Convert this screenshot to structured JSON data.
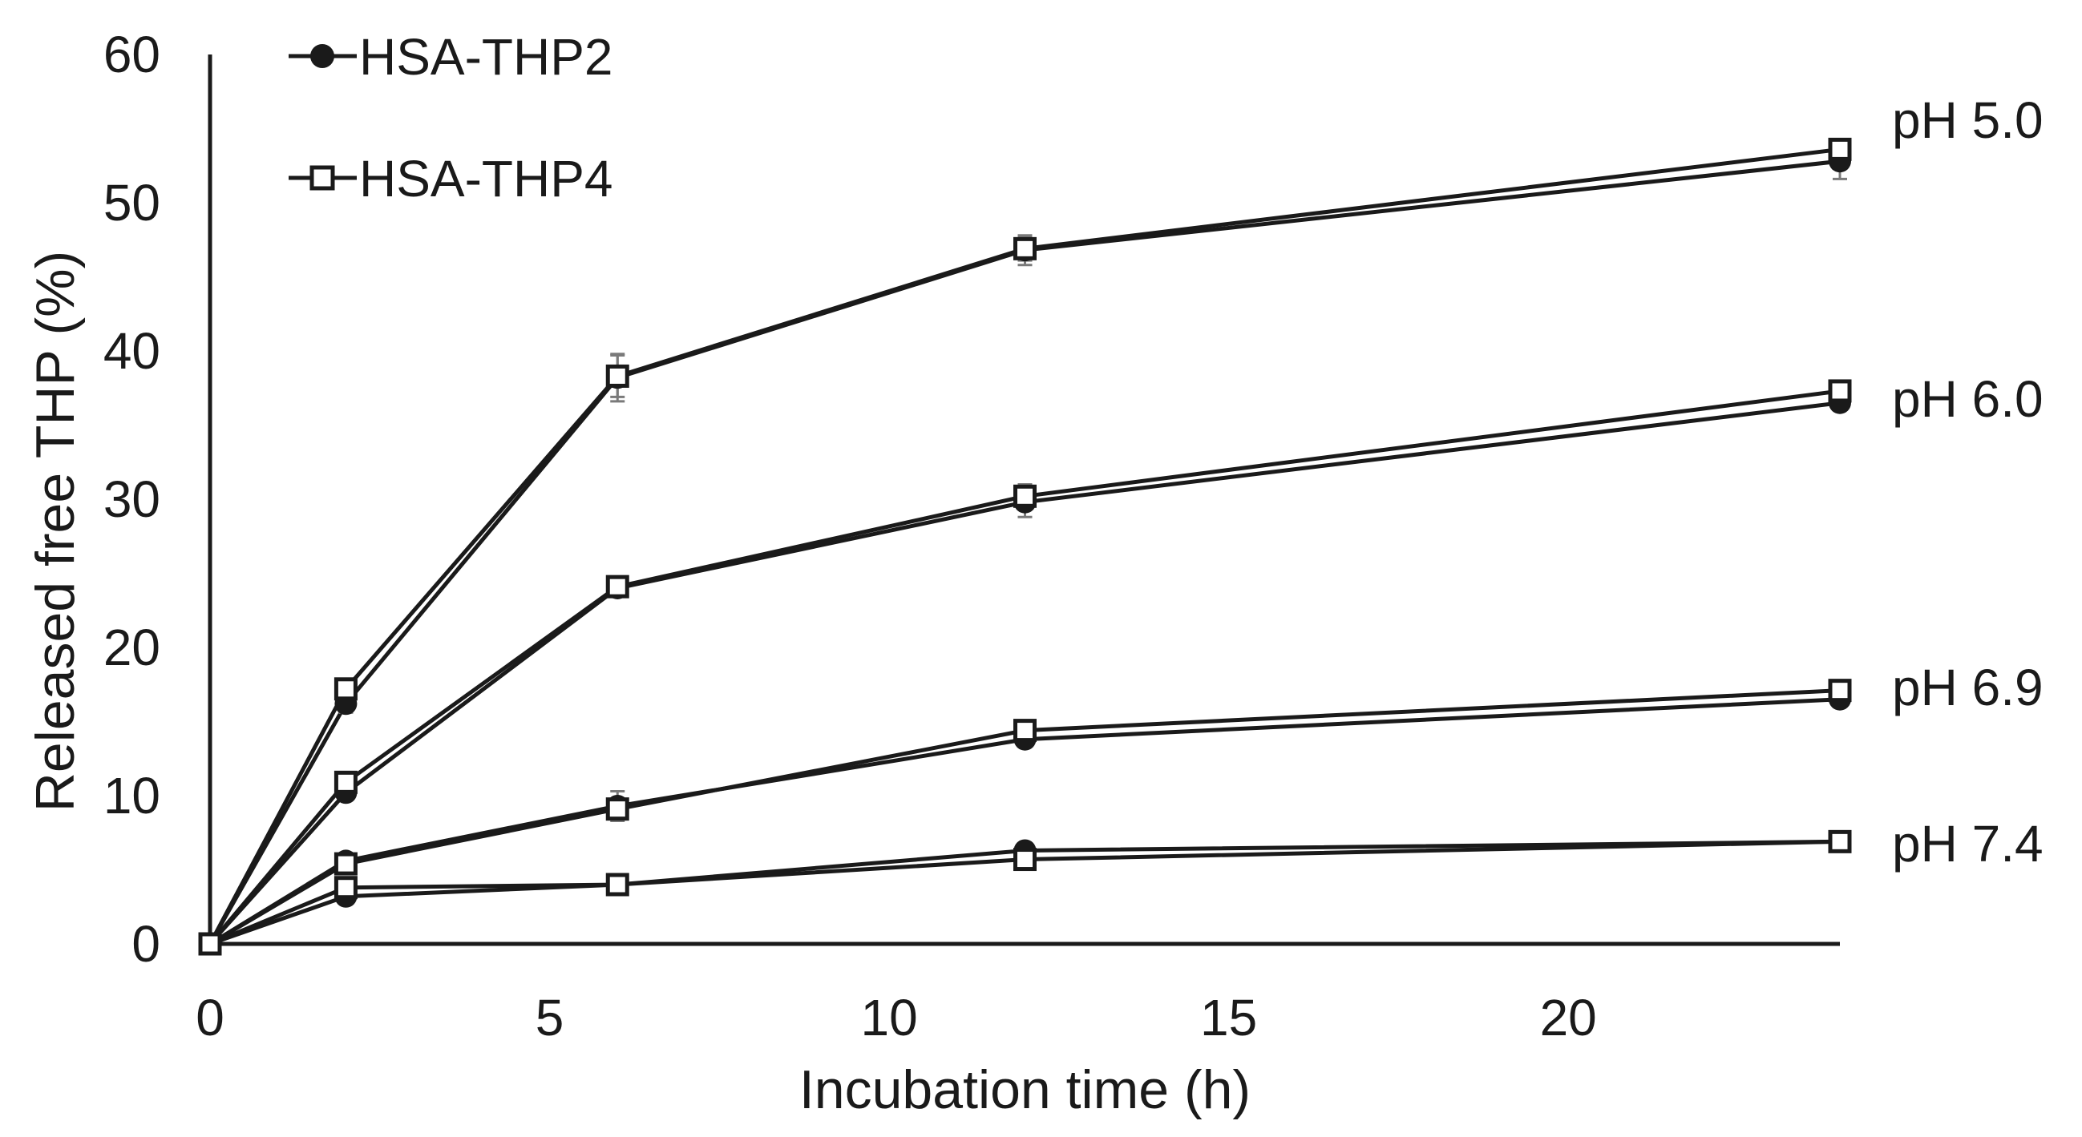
{
  "chart_data": {
    "type": "line",
    "title": "",
    "xlabel": "Incubation time (h)",
    "ylabel": "Released free THP (%)",
    "xlim": [
      0,
      24
    ],
    "ylim": [
      0,
      60
    ],
    "xticks": [
      0,
      5,
      10,
      15,
      20
    ],
    "yticks": [
      0,
      10,
      20,
      30,
      40,
      50,
      60
    ],
    "x": [
      0,
      2,
      6,
      12,
      24
    ],
    "legend": {
      "position": "top-left",
      "entries": [
        {
          "name": "HSA-THP2",
          "marker": "filled-circle"
        },
        {
          "name": "HSA-THP4",
          "marker": "open-square"
        }
      ]
    },
    "groups": [
      {
        "label": "pH 5.0",
        "series": [
          {
            "name": "HSA-THP2",
            "marker": "filled-circle",
            "values": [
              0,
              16.2,
              38.2,
              46.8,
              52.8
            ],
            "errors": [
              0,
              0.6,
              1.6,
              1.0,
              1.2
            ]
          },
          {
            "name": "HSA-THP4",
            "marker": "open-square",
            "values": [
              0,
              17.2,
              38.3,
              46.9,
              53.6
            ],
            "errors": [
              0,
              0.5,
              1.4,
              0.8,
              0.6
            ]
          }
        ]
      },
      {
        "label": "pH 6.0",
        "series": [
          {
            "name": "HSA-THP2",
            "marker": "filled-circle",
            "values": [
              0,
              10.2,
              24.0,
              29.8,
              36.5
            ],
            "errors": [
              0,
              0.5,
              0.4,
              1.0,
              0.5
            ]
          },
          {
            "name": "HSA-THP4",
            "marker": "open-square",
            "values": [
              0,
              10.9,
              24.1,
              30.2,
              37.3
            ],
            "errors": [
              0,
              0.4,
              0.4,
              0.8,
              0.4
            ]
          }
        ]
      },
      {
        "label": "pH 6.9",
        "series": [
          {
            "name": "HSA-THP2",
            "marker": "filled-circle",
            "values": [
              0,
              5.6,
              9.3,
              13.8,
              16.5
            ],
            "errors": [
              0,
              0.4,
              1.0,
              0.5,
              0.3
            ]
          },
          {
            "name": "HSA-THP4",
            "marker": "open-square",
            "values": [
              0,
              5.4,
              9.1,
              14.4,
              17.1
            ],
            "errors": [
              0,
              0.3,
              0.6,
              0.4,
              0.3
            ]
          }
        ]
      },
      {
        "label": "pH 7.4",
        "series": [
          {
            "name": "HSA-THP2",
            "marker": "filled-circle",
            "values": [
              0,
              3.2,
              4.0,
              6.3,
              6.9
            ],
            "errors": [
              0,
              0.3,
              0.3,
              0.3,
              0.2
            ]
          },
          {
            "name": "HSA-THP4",
            "marker": "open-square",
            "values": [
              0,
              3.8,
              4.0,
              5.7,
              6.9
            ],
            "errors": [
              0,
              0.3,
              0.3,
              0.3,
              0.2
            ]
          }
        ]
      }
    ]
  }
}
